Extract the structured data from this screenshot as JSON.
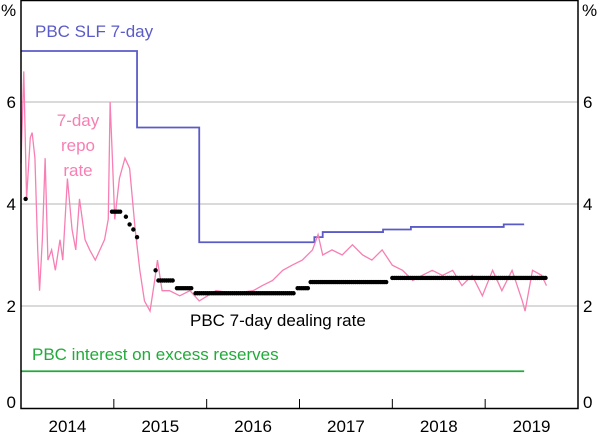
{
  "chart_data": {
    "type": "line",
    "unit_left": "%",
    "unit_right": "%",
    "xlim": [
      2014,
      2020
    ],
    "ylim": [
      0,
      8
    ],
    "yticks": [
      0,
      2,
      4,
      6
    ],
    "xtick_labels": [
      "2014",
      "2015",
      "2016",
      "2017",
      "2018",
      "2019"
    ],
    "grid": true,
    "colors": {
      "slf": "#5b5bc8",
      "repo": "#f77fb3",
      "dealing": "#000000",
      "ioer": "#22aa3a",
      "grid": "#b5b5b5"
    },
    "annotations": {
      "slf": "PBC SLF 7-day",
      "repo": [
        "7-day",
        "repo",
        "rate"
      ],
      "dealing": "PBC 7-day dealing rate",
      "ioer": "PBC interest on excess reserves"
    },
    "series": [
      {
        "key": "slf",
        "step": true,
        "points": [
          [
            2014.0,
            7.0
          ],
          [
            2015.25,
            5.5
          ],
          [
            2015.92,
            3.25
          ],
          [
            2017.16,
            3.35
          ],
          [
            2017.25,
            3.45
          ],
          [
            2017.9,
            3.5
          ],
          [
            2018.2,
            3.55
          ],
          [
            2019.2,
            3.6
          ],
          [
            2019.42,
            3.6
          ]
        ]
      },
      {
        "key": "ioer",
        "points": [
          [
            2014.0,
            0.72
          ],
          [
            2019.42,
            0.72
          ]
        ]
      },
      {
        "key": "repo",
        "points": [
          [
            2014.0,
            4.8
          ],
          [
            2014.03,
            6.6
          ],
          [
            2014.06,
            4.1
          ],
          [
            2014.1,
            5.3
          ],
          [
            2014.12,
            5.4
          ],
          [
            2014.15,
            4.9
          ],
          [
            2014.18,
            3.1
          ],
          [
            2014.2,
            2.3
          ],
          [
            2014.23,
            3.3
          ],
          [
            2014.26,
            4.9
          ],
          [
            2014.29,
            2.9
          ],
          [
            2014.33,
            3.1
          ],
          [
            2014.37,
            2.7
          ],
          [
            2014.42,
            3.3
          ],
          [
            2014.45,
            2.9
          ],
          [
            2014.5,
            4.5
          ],
          [
            2014.55,
            3.5
          ],
          [
            2014.59,
            3.1
          ],
          [
            2014.63,
            4.1
          ],
          [
            2014.69,
            3.3
          ],
          [
            2014.74,
            3.1
          ],
          [
            2014.8,
            2.9
          ],
          [
            2014.85,
            3.1
          ],
          [
            2014.9,
            3.3
          ],
          [
            2014.94,
            3.7
          ],
          [
            2014.96,
            6.0
          ],
          [
            2014.98,
            5.1
          ],
          [
            2015.01,
            3.7
          ],
          [
            2015.06,
            4.5
          ],
          [
            2015.12,
            4.9
          ],
          [
            2015.17,
            4.7
          ],
          [
            2015.23,
            3.5
          ],
          [
            2015.28,
            2.7
          ],
          [
            2015.33,
            2.1
          ],
          [
            2015.39,
            1.9
          ],
          [
            2015.44,
            2.5
          ],
          [
            2015.47,
            2.9
          ],
          [
            2015.52,
            2.3
          ],
          [
            2015.6,
            2.3
          ],
          [
            2015.71,
            2.2
          ],
          [
            2015.82,
            2.3
          ],
          [
            2015.92,
            2.1
          ],
          [
            2016.1,
            2.3
          ],
          [
            2016.3,
            2.25
          ],
          [
            2016.5,
            2.3
          ],
          [
            2016.6,
            2.4
          ],
          [
            2016.71,
            2.5
          ],
          [
            2016.82,
            2.7
          ],
          [
            2016.92,
            2.8
          ],
          [
            2017.03,
            2.9
          ],
          [
            2017.14,
            3.1
          ],
          [
            2017.2,
            3.4
          ],
          [
            2017.25,
            3.0
          ],
          [
            2017.35,
            3.1
          ],
          [
            2017.46,
            3.0
          ],
          [
            2017.57,
            3.2
          ],
          [
            2017.68,
            3.0
          ],
          [
            2017.78,
            2.9
          ],
          [
            2017.89,
            3.1
          ],
          [
            2018.0,
            2.8
          ],
          [
            2018.11,
            2.7
          ],
          [
            2018.22,
            2.5
          ],
          [
            2018.32,
            2.6
          ],
          [
            2018.43,
            2.7
          ],
          [
            2018.54,
            2.6
          ],
          [
            2018.65,
            2.7
          ],
          [
            2018.75,
            2.4
          ],
          [
            2018.86,
            2.6
          ],
          [
            2018.97,
            2.2
          ],
          [
            2019.08,
            2.7
          ],
          [
            2019.18,
            2.3
          ],
          [
            2019.29,
            2.7
          ],
          [
            2019.4,
            2.1
          ],
          [
            2019.43,
            1.9
          ],
          [
            2019.51,
            2.7
          ],
          [
            2019.61,
            2.6
          ],
          [
            2019.66,
            2.4
          ]
        ]
      },
      {
        "key": "dealing",
        "markers": true,
        "segments": [
          [
            2014.05,
            2014.05,
            4.1
          ],
          [
            2014.98,
            2015.08,
            3.85
          ],
          [
            2015.13,
            2015.15,
            3.75
          ],
          [
            2015.17,
            2015.19,
            3.6
          ],
          [
            2015.21,
            2015.23,
            3.5
          ],
          [
            2015.25,
            2015.27,
            3.35
          ],
          [
            2015.45,
            2015.45,
            2.7
          ],
          [
            2015.48,
            2015.65,
            2.5
          ],
          [
            2015.68,
            2015.85,
            2.35
          ],
          [
            2015.88,
            2016.95,
            2.25
          ],
          [
            2016.98,
            2017.1,
            2.35
          ],
          [
            2017.12,
            2017.95,
            2.47
          ],
          [
            2018.0,
            2019.66,
            2.55
          ]
        ]
      }
    ]
  }
}
